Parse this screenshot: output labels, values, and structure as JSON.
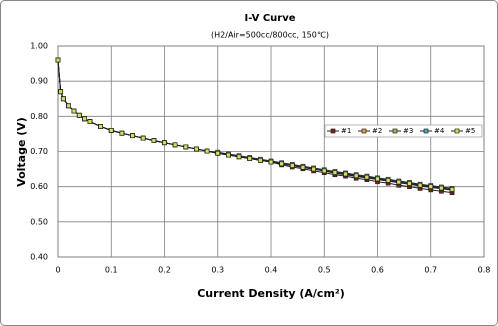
{
  "chart_data": {
    "type": "line",
    "title": "I-V Curve",
    "subtitle": "(H2/Air=500cc/800cc, 150℃)",
    "x_label": "Current Density (A/cm²)",
    "y_label": "Voltage (V)",
    "x": [
      0,
      0.005,
      0.01,
      0.02,
      0.03,
      0.04,
      0.05,
      0.06,
      0.08,
      0.1,
      0.12,
      0.14,
      0.16,
      0.18,
      0.2,
      0.22,
      0.24,
      0.26,
      0.28,
      0.3,
      0.32,
      0.34,
      0.36,
      0.38,
      0.4,
      0.42,
      0.44,
      0.46,
      0.48,
      0.5,
      0.52,
      0.54,
      0.56,
      0.58,
      0.6,
      0.62,
      0.64,
      0.66,
      0.68,
      0.7,
      0.72,
      0.74
    ],
    "series": [
      {
        "name": "#1",
        "color": "#8b1a1a",
        "values": [
          0.96,
          0.87,
          0.85,
          0.83,
          0.815,
          0.803,
          0.793,
          0.785,
          0.771,
          0.76,
          0.752,
          0.745,
          0.738,
          0.731,
          0.725,
          0.719,
          0.713,
          0.707,
          0.701,
          0.695,
          0.69,
          0.685,
          0.68,
          0.675,
          0.67,
          0.662,
          0.656,
          0.651,
          0.645,
          0.64,
          0.634,
          0.63,
          0.624,
          0.62,
          0.614,
          0.61,
          0.604,
          0.6,
          0.595,
          0.591,
          0.587,
          0.583
        ]
      },
      {
        "name": "#2",
        "color": "#f0a030",
        "values": [
          0.96,
          0.87,
          0.85,
          0.83,
          0.815,
          0.803,
          0.793,
          0.785,
          0.771,
          0.76,
          0.752,
          0.745,
          0.738,
          0.731,
          0.725,
          0.719,
          0.713,
          0.707,
          0.701,
          0.695,
          0.69,
          0.685,
          0.68,
          0.675,
          0.67,
          0.665,
          0.66,
          0.655,
          0.65,
          0.645,
          0.638,
          0.634,
          0.629,
          0.625,
          0.62,
          0.616,
          0.611,
          0.607,
          0.602,
          0.598,
          0.594,
          0.59
        ]
      },
      {
        "name": "#3",
        "color": "#9bbb59",
        "values": [
          0.96,
          0.87,
          0.85,
          0.83,
          0.815,
          0.803,
          0.793,
          0.785,
          0.771,
          0.76,
          0.752,
          0.745,
          0.738,
          0.731,
          0.725,
          0.719,
          0.713,
          0.707,
          0.701,
          0.695,
          0.69,
          0.685,
          0.68,
          0.675,
          0.67,
          0.665,
          0.66,
          0.655,
          0.65,
          0.645,
          0.64,
          0.636,
          0.631,
          0.627,
          0.622,
          0.618,
          0.613,
          0.609,
          0.604,
          0.6,
          0.596,
          0.592
        ]
      },
      {
        "name": "#4",
        "color": "#4bacc6",
        "values": [
          0.96,
          0.87,
          0.85,
          0.83,
          0.815,
          0.803,
          0.793,
          0.785,
          0.771,
          0.76,
          0.752,
          0.745,
          0.738,
          0.731,
          0.725,
          0.719,
          0.713,
          0.707,
          0.701,
          0.698,
          0.693,
          0.688,
          0.683,
          0.678,
          0.673,
          0.668,
          0.663,
          0.658,
          0.653,
          0.648,
          0.643,
          0.639,
          0.634,
          0.63,
          0.625,
          0.621,
          0.616,
          0.612,
          0.607,
          0.603,
          0.599,
          0.595
        ]
      },
      {
        "name": "#5",
        "color": "#d4e157",
        "values": [
          0.96,
          0.87,
          0.85,
          0.83,
          0.815,
          0.803,
          0.793,
          0.785,
          0.771,
          0.76,
          0.752,
          0.745,
          0.738,
          0.731,
          0.725,
          0.719,
          0.713,
          0.707,
          0.701,
          0.695,
          0.69,
          0.685,
          0.68,
          0.675,
          0.67,
          0.665,
          0.66,
          0.655,
          0.65,
          0.645,
          0.64,
          0.636,
          0.631,
          0.627,
          0.622,
          0.618,
          0.613,
          0.609,
          0.604,
          0.6,
          0.596,
          0.592
        ]
      }
    ],
    "xlim": [
      0,
      0.8
    ],
    "xticks": [
      0,
      0.1,
      0.2,
      0.3,
      0.4,
      0.5,
      0.6,
      0.7,
      0.8
    ],
    "ylim": [
      0.4,
      1.0
    ],
    "yticks": [
      {
        "value": 0.4,
        "label": "0.40"
      },
      {
        "value": 0.5,
        "label": "0.50"
      },
      {
        "value": 0.6,
        "label": "0.60"
      },
      {
        "value": 0.7,
        "label": "0.70"
      },
      {
        "value": 0.8,
        "label": "0.80"
      },
      {
        "value": 0.9,
        "label": "0.90"
      },
      {
        "value": 1.0,
        "label": "1.00"
      }
    ],
    "grid": true,
    "legend": "right"
  }
}
